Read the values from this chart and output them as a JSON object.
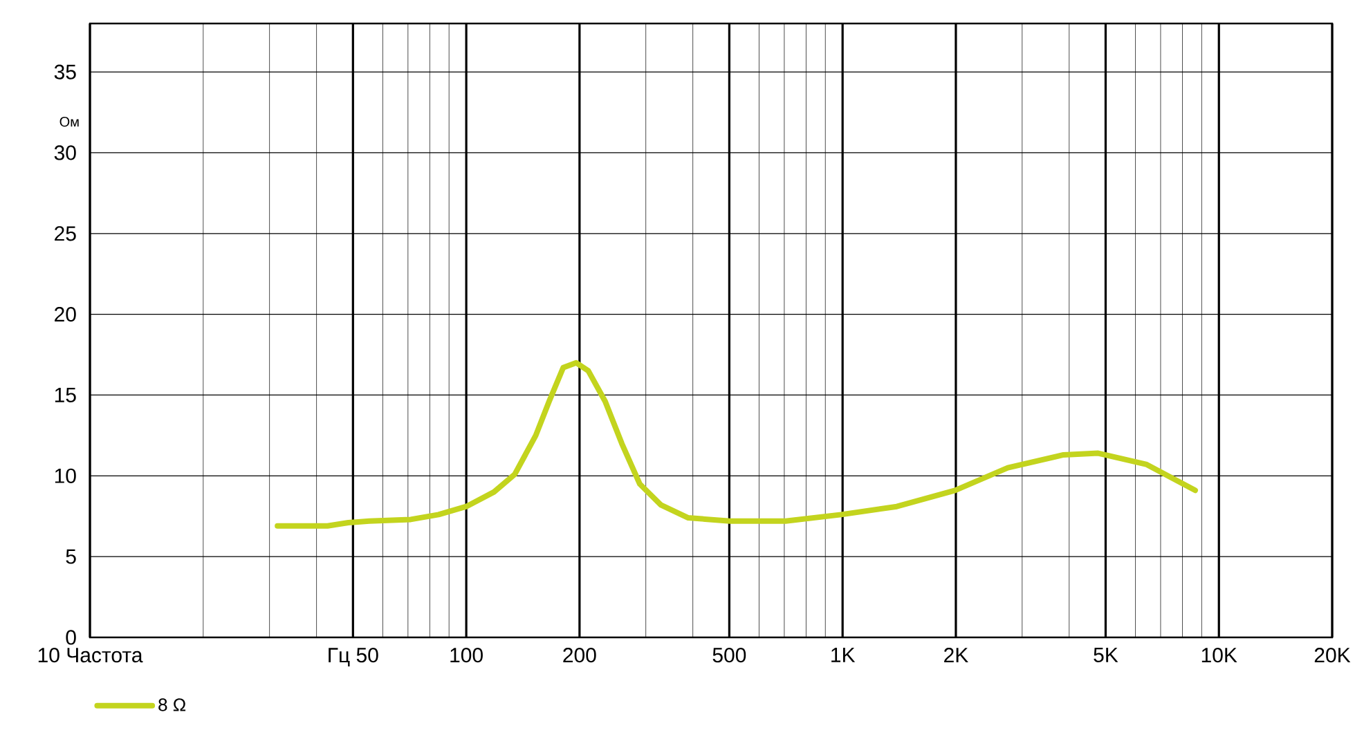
{
  "chart_data": {
    "type": "line",
    "xlabel": null,
    "ylabel": "Ом",
    "x": [
      31.5,
      42.8,
      48.6,
      55.2,
      71.2,
      84.4,
      100,
      118.5,
      134.6,
      153,
      166,
      181,
      196,
      211,
      234,
      259,
      289,
      329,
      389,
      502,
      706,
      991,
      1393,
      1990,
      2748,
      3864,
      4777,
      6430,
      8650
    ],
    "series": [
      {
        "name": "8 Ω",
        "color": "#c3d41e",
        "values": [
          6.9,
          6.9,
          7.1,
          7.2,
          7.3,
          7.6,
          8.1,
          9.0,
          10.1,
          12.5,
          14.6,
          16.7,
          17.0,
          16.5,
          14.6,
          12.0,
          9.5,
          8.2,
          7.4,
          7.2,
          7.2,
          7.6,
          8.1,
          9.1,
          10.5,
          11.3,
          11.4,
          10.7,
          9.1
        ]
      }
    ],
    "log": "x",
    "xlim": [
      10,
      20000
    ],
    "ylim": [
      0,
      38
    ],
    "xticks": [
      {
        "value": 10,
        "label": "10 Частота"
      },
      {
        "value": 50,
        "label": "Гц 50"
      },
      100,
      200,
      500,
      {
        "value": 1000,
        "label": "1K"
      },
      {
        "value": 2000,
        "label": "2K"
      },
      {
        "value": 5000,
        "label": "5K"
      },
      {
        "value": 10000,
        "label": "10K"
      },
      {
        "value": 20000,
        "label": "20K"
      }
    ],
    "yticks": [
      0,
      5,
      10,
      15,
      20,
      25,
      30,
      35
    ],
    "grid": true,
    "legend": "bottom left",
    "marker": "none",
    "line_style": "solid"
  }
}
